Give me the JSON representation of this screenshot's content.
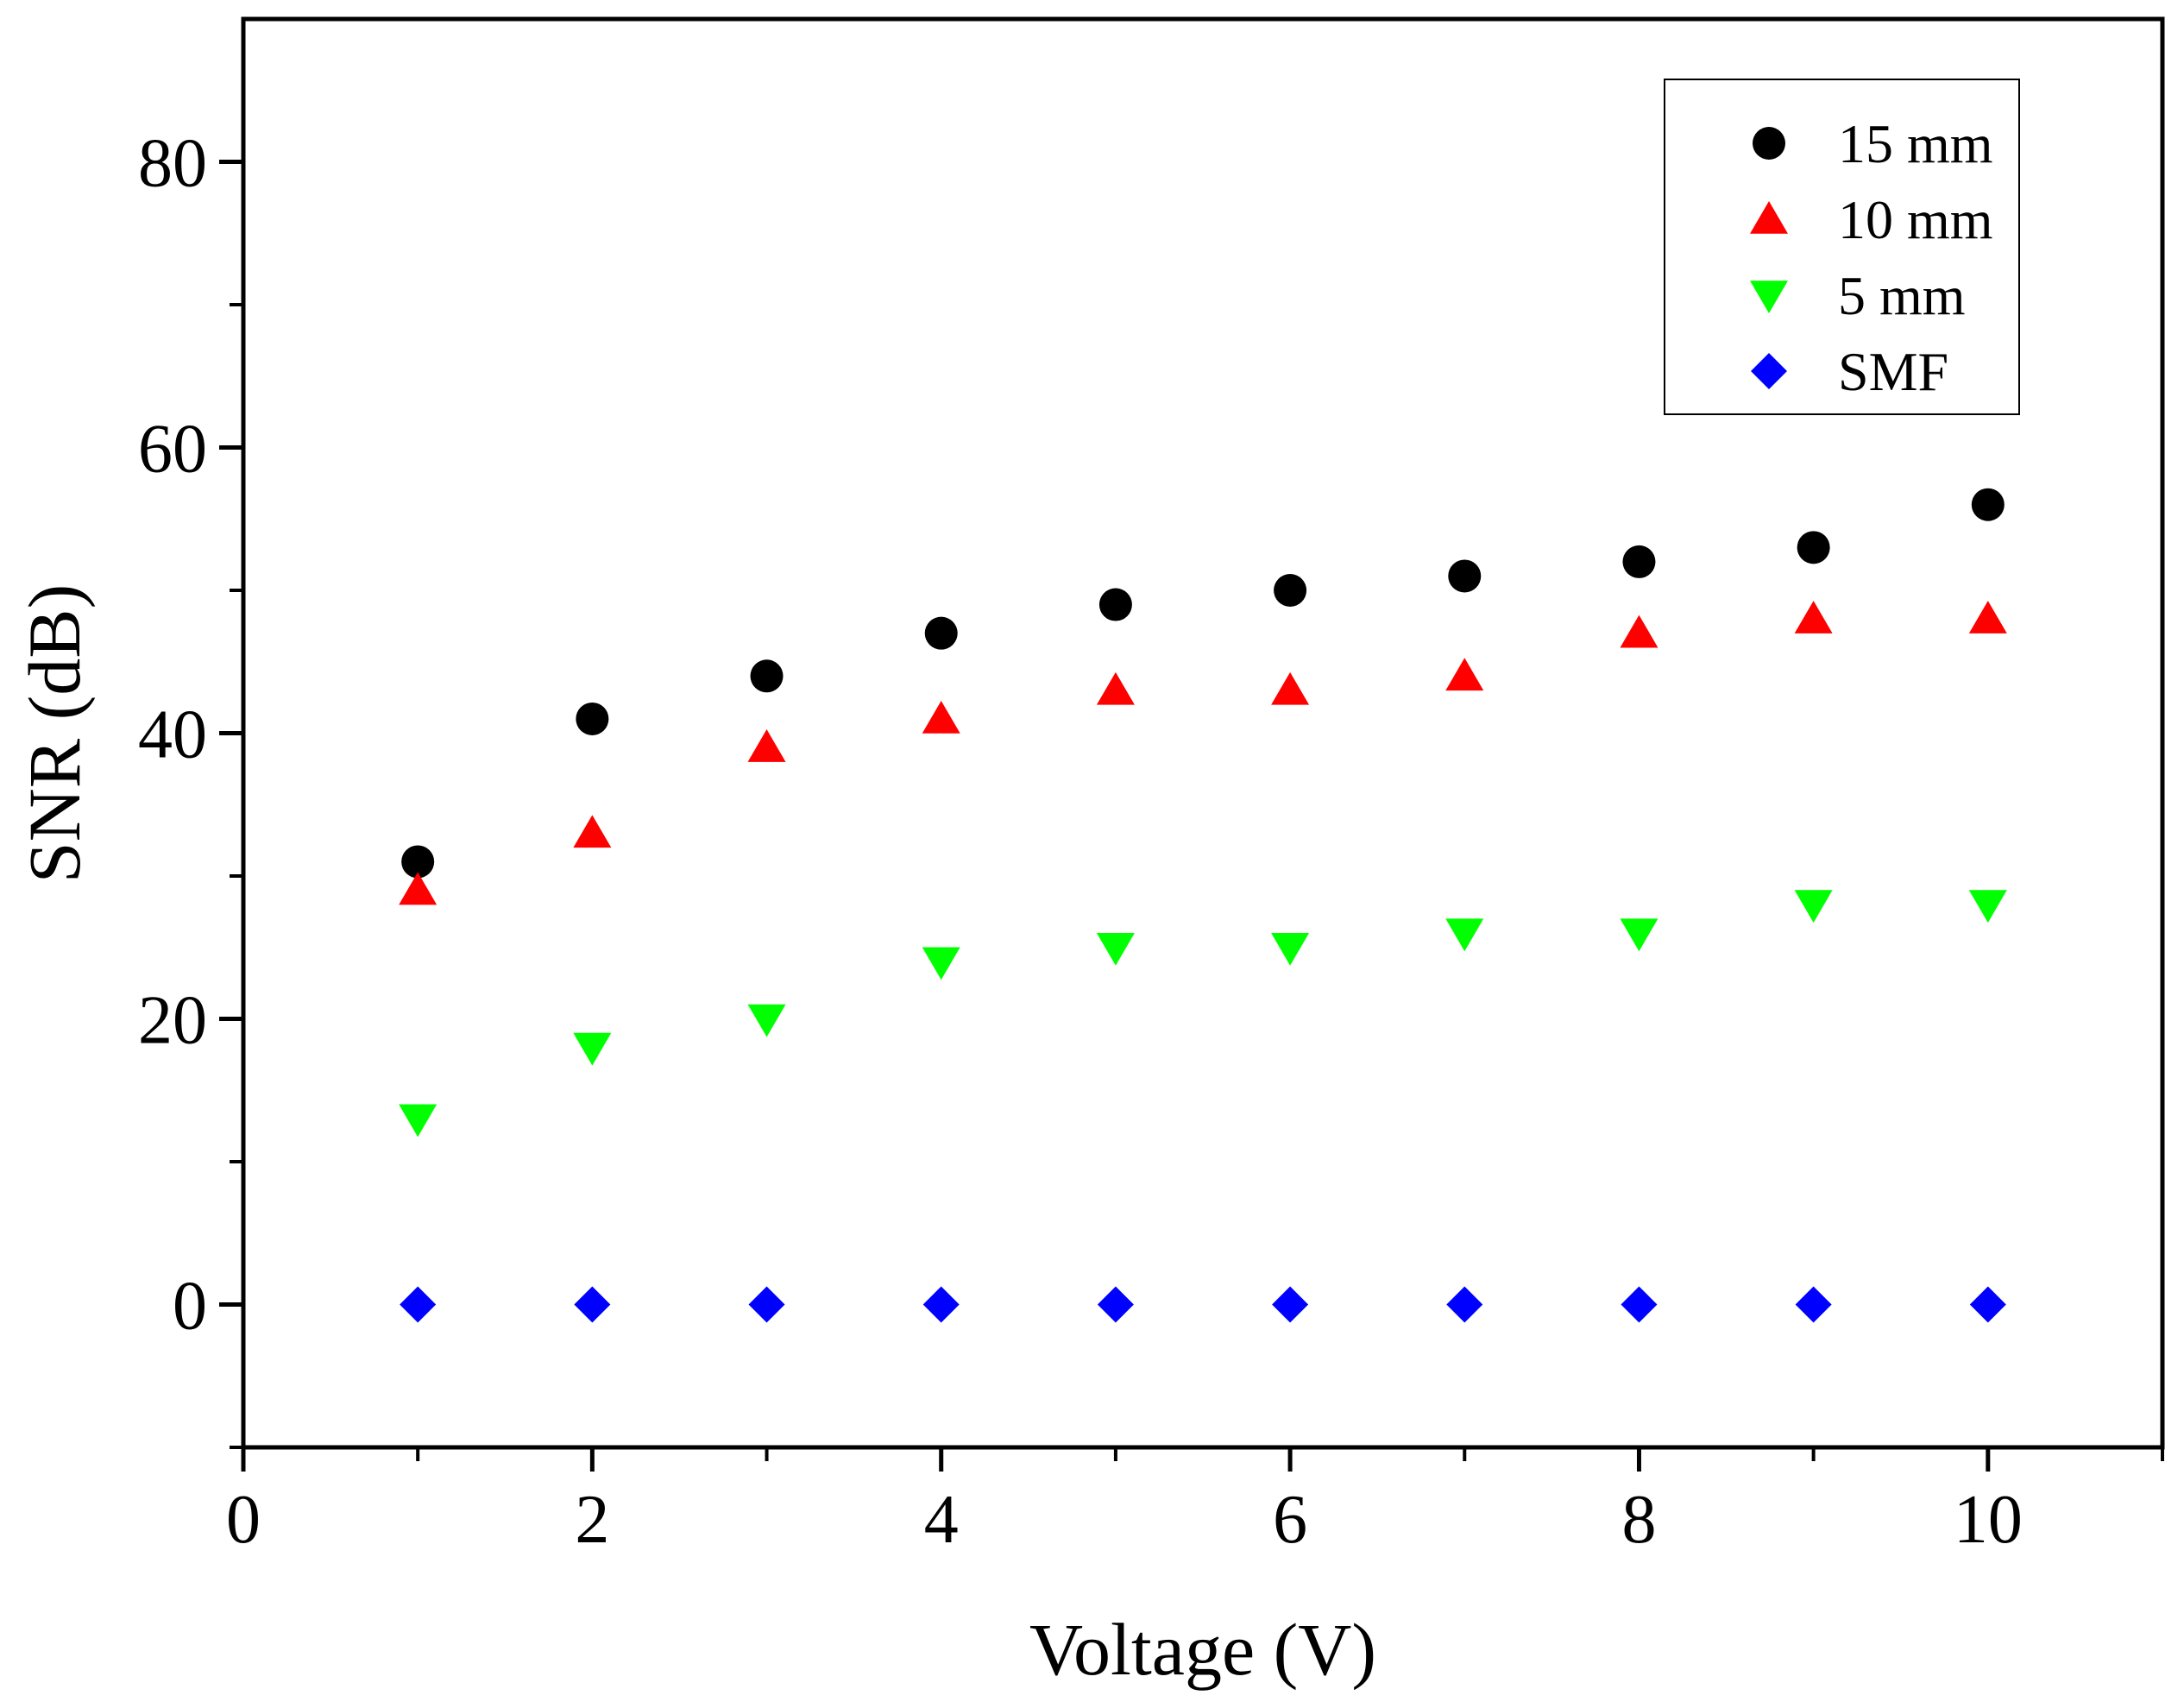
{
  "chart_data": {
    "type": "scatter",
    "title": "",
    "xlabel": "Voltage (V)",
    "ylabel": "SNR (dB)",
    "xlim": [
      0,
      11
    ],
    "ylim": [
      -10,
      90
    ],
    "x_ticks": [
      0,
      2,
      4,
      6,
      8,
      10
    ],
    "x_tick_labels": [
      "0",
      "2",
      "4",
      "6",
      "8",
      "10"
    ],
    "x_minor_ticks": [
      1,
      3,
      5,
      7,
      9,
      11
    ],
    "y_ticks": [
      0,
      20,
      40,
      60,
      80
    ],
    "y_tick_labels": [
      "0",
      "20",
      "40",
      "60",
      "80"
    ],
    "y_minor_ticks": [
      -10,
      10,
      30,
      50,
      70
    ],
    "grid": false,
    "legend_position": "top-right",
    "x": [
      1,
      2,
      3,
      4,
      5,
      6,
      7,
      8,
      9,
      10
    ],
    "series": [
      {
        "name": "15 mm",
        "marker": "circle",
        "color": "#000000",
        "values": [
          31,
          41,
          44,
          47,
          49,
          50,
          51,
          52,
          53,
          56
        ]
      },
      {
        "name": "10 mm",
        "marker": "triangle-up",
        "color": "#ff0000",
        "values": [
          29,
          33,
          39,
          41,
          43,
          43,
          44,
          47,
          48,
          48
        ]
      },
      {
        "name": "5 mm",
        "marker": "triangle-down",
        "color": "#00ff00",
        "values": [
          13,
          18,
          20,
          24,
          25,
          25,
          26,
          26,
          28,
          28
        ]
      },
      {
        "name": "SMF",
        "marker": "diamond",
        "color": "#0000ff",
        "values": [
          0,
          0,
          0,
          0,
          0,
          0,
          0,
          0,
          0,
          0
        ]
      }
    ]
  }
}
